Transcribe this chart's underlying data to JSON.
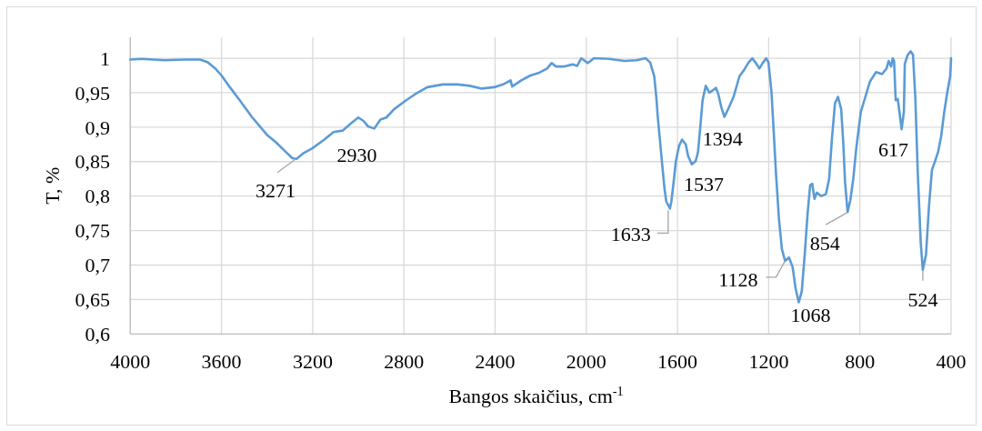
{
  "chart_data": {
    "type": "line",
    "xlabel": "Bangos skaičius, cm$^{-1}$",
    "ylabel": "T, %",
    "xlim": [
      4000,
      400
    ],
    "ylim": [
      0.6,
      1.03
    ],
    "xticks": [
      4000,
      3600,
      3200,
      2800,
      2400,
      2000,
      1600,
      1200,
      800,
      400
    ],
    "yticks": [
      {
        "value": 0.6,
        "label": "0,6"
      },
      {
        "value": 0.65,
        "label": "0,65"
      },
      {
        "value": 0.7,
        "label": "0,7"
      },
      {
        "value": 0.75,
        "label": "0,75"
      },
      {
        "value": 0.8,
        "label": "0,8"
      },
      {
        "value": 0.85,
        "label": "0,85"
      },
      {
        "value": 0.9,
        "label": "0,9"
      },
      {
        "value": 0.95,
        "label": "0,95"
      },
      1
    ],
    "grid": true,
    "x": [
      4000,
      3950,
      3850,
      3760,
      3694,
      3660,
      3627,
      3600,
      3561,
      3520,
      3467,
      3401,
      3361,
      3321,
      3289,
      3271,
      3242,
      3203,
      3149,
      3109,
      3069,
      3030,
      3000,
      2977,
      2957,
      2930,
      2903,
      2877,
      2843,
      2790,
      2750,
      2697,
      2630,
      2564,
      2511,
      2458,
      2404,
      2365,
      2332,
      2325,
      2285,
      2245,
      2206,
      2172,
      2152,
      2133,
      2099,
      2060,
      2040,
      2022,
      1993,
      1966,
      1900,
      1833,
      1780,
      1740,
      1720,
      1702,
      1693,
      1686,
      1676,
      1666,
      1657,
      1649,
      1633,
      1627,
      1617,
      1607,
      1593,
      1580,
      1564,
      1553,
      1537,
      1520,
      1510,
      1500,
      1490,
      1476,
      1460,
      1447,
      1431,
      1421,
      1407,
      1394,
      1381,
      1354,
      1328,
      1308,
      1288,
      1272,
      1254,
      1241,
      1228,
      1211,
      1201,
      1188,
      1179,
      1168,
      1155,
      1142,
      1128,
      1111,
      1095,
      1082,
      1068,
      1055,
      1042,
      1029,
      1018,
      1009,
      999,
      989,
      969,
      949,
      935,
      922,
      909,
      896,
      882,
      873,
      865,
      854,
      842,
      829,
      816,
      796,
      776,
      756,
      729,
      703,
      683,
      674,
      663,
      656,
      650,
      643,
      634,
      623,
      617,
      607,
      603,
      590,
      577,
      567,
      557,
      546,
      533,
      524,
      510,
      497,
      484,
      470,
      457,
      444,
      430,
      417,
      404,
      400
    ],
    "series": [
      {
        "color": "#5b9bd5",
        "values": [
          0.998,
          0.999,
          0.997,
          0.998,
          0.998,
          0.994,
          0.985,
          0.975,
          0.957,
          0.939,
          0.915,
          0.889,
          0.878,
          0.865,
          0.855,
          0.854,
          0.862,
          0.869,
          0.882,
          0.893,
          0.895,
          0.906,
          0.914,
          0.909,
          0.901,
          0.898,
          0.911,
          0.914,
          0.926,
          0.939,
          0.948,
          0.958,
          0.962,
          0.962,
          0.96,
          0.956,
          0.958,
          0.962,
          0.968,
          0.959,
          0.968,
          0.975,
          0.979,
          0.985,
          0.993,
          0.988,
          0.988,
          0.991,
          0.989,
          1.0,
          0.993,
          1.0,
          0.999,
          0.996,
          0.997,
          1.0,
          0.994,
          0.974,
          0.944,
          0.913,
          0.878,
          0.842,
          0.811,
          0.792,
          0.782,
          0.792,
          0.82,
          0.851,
          0.873,
          0.882,
          0.875,
          0.858,
          0.846,
          0.851,
          0.864,
          0.9,
          0.939,
          0.96,
          0.95,
          0.953,
          0.957,
          0.948,
          0.928,
          0.915,
          0.924,
          0.944,
          0.974,
          0.983,
          0.994,
          1.0,
          0.992,
          0.985,
          0.992,
          1.0,
          0.994,
          0.952,
          0.9,
          0.833,
          0.767,
          0.723,
          0.706,
          0.711,
          0.697,
          0.666,
          0.646,
          0.662,
          0.715,
          0.776,
          0.816,
          0.818,
          0.796,
          0.805,
          0.8,
          0.803,
          0.825,
          0.886,
          0.935,
          0.944,
          0.926,
          0.878,
          0.82,
          0.777,
          0.794,
          0.825,
          0.869,
          0.922,
          0.944,
          0.966,
          0.98,
          0.977,
          0.985,
          0.996,
          0.988,
          1.0,
          0.996,
          0.939,
          0.941,
          0.913,
          0.897,
          0.922,
          0.992,
          1.005,
          1.01,
          1.005,
          0.944,
          0.833,
          0.732,
          0.693,
          0.715,
          0.785,
          0.838,
          0.851,
          0.864,
          0.886,
          0.922,
          0.95,
          0.974,
          1.0
        ]
      }
    ],
    "annotations": [
      {
        "text": "3271",
        "x": 3271,
        "y": 0.854
      },
      {
        "text": "2930",
        "x": 2930,
        "y": 0.898
      },
      {
        "text": "1633",
        "x": 1633,
        "y": 0.782
      },
      {
        "text": "1537",
        "x": 1537,
        "y": 0.846
      },
      {
        "text": "1394",
        "x": 1394,
        "y": 0.915
      },
      {
        "text": "1128",
        "x": 1128,
        "y": 0.706
      },
      {
        "text": "1068",
        "x": 1068,
        "y": 0.646
      },
      {
        "text": "854",
        "x": 854,
        "y": 0.777
      },
      {
        "text": "617",
        "x": 617,
        "y": 0.897
      },
      {
        "text": "524",
        "x": 524,
        "y": 0.693
      }
    ]
  }
}
